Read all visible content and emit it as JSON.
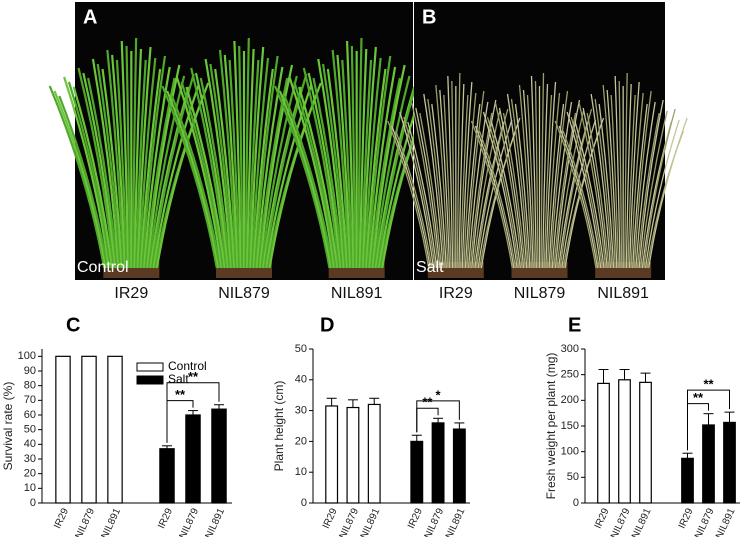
{
  "photos": [
    {
      "label": "A",
      "condition": "Control",
      "lines": [
        "IR29",
        "NIL879",
        "NIL891"
      ]
    },
    {
      "label": "B",
      "condition": "Salt",
      "lines": [
        "IR29",
        "NIL879",
        "NIL891"
      ]
    }
  ],
  "chart_data": [
    {
      "type": "bar",
      "panel": "C",
      "ylabel": "Survival rate (%)",
      "categories": [
        "IR29",
        "NIL879",
        "NIL891",
        "IR29",
        "NIL879",
        "NIL891"
      ],
      "series": [
        {
          "name": "Control",
          "color": "#ffffff",
          "values": [
            100,
            100,
            100,
            null,
            null,
            null
          ],
          "errors": [
            0,
            0,
            0,
            null,
            null,
            null
          ]
        },
        {
          "name": "Salt",
          "color": "#000000",
          "values": [
            null,
            null,
            null,
            37,
            60,
            64
          ],
          "errors": [
            null,
            null,
            null,
            2,
            3,
            3
          ]
        }
      ],
      "annotations": [
        "**",
        "**"
      ],
      "legend": true,
      "ylim": [
        0,
        105
      ],
      "yticks": [
        0,
        10,
        20,
        30,
        40,
        50,
        60,
        70,
        80,
        90,
        100
      ]
    },
    {
      "type": "bar",
      "panel": "D",
      "ylabel": "Plant height (cm)",
      "categories": [
        "IR29",
        "NIL879",
        "NIL891",
        "IR29",
        "NIL879",
        "NIL891"
      ],
      "series": [
        {
          "name": "Control",
          "color": "#ffffff",
          "values": [
            31.5,
            31,
            32,
            null,
            null,
            null
          ],
          "errors": [
            2.5,
            2.5,
            2,
            null,
            null,
            null
          ]
        },
        {
          "name": "Salt",
          "color": "#000000",
          "values": [
            null,
            null,
            null,
            20,
            26,
            24
          ],
          "errors": [
            null,
            null,
            null,
            2,
            1.5,
            2
          ]
        }
      ],
      "annotations": [
        "**",
        "*"
      ],
      "legend": false,
      "ylim": [
        0,
        50
      ],
      "yticks": [
        0,
        10,
        20,
        30,
        40,
        50
      ]
    },
    {
      "type": "bar",
      "panel": "E",
      "ylabel": "Fresh weight per plant (mg)",
      "categories": [
        "IR29",
        "NIL879",
        "NIL891",
        "IR29",
        "NIL879",
        "NIL891"
      ],
      "series": [
        {
          "name": "Control",
          "color": "#ffffff",
          "values": [
            233,
            240,
            235,
            null,
            null,
            null
          ],
          "errors": [
            27,
            20,
            18,
            null,
            null,
            null
          ]
        },
        {
          "name": "Salt",
          "color": "#000000",
          "values": [
            null,
            null,
            null,
            87,
            152,
            157
          ],
          "errors": [
            null,
            null,
            null,
            10,
            22,
            20
          ]
        }
      ],
      "annotations": [
        "**",
        "**"
      ],
      "legend": false,
      "ylim": [
        0,
        300
      ],
      "yticks": [
        0,
        50,
        100,
        150,
        200,
        250,
        300
      ]
    }
  ]
}
